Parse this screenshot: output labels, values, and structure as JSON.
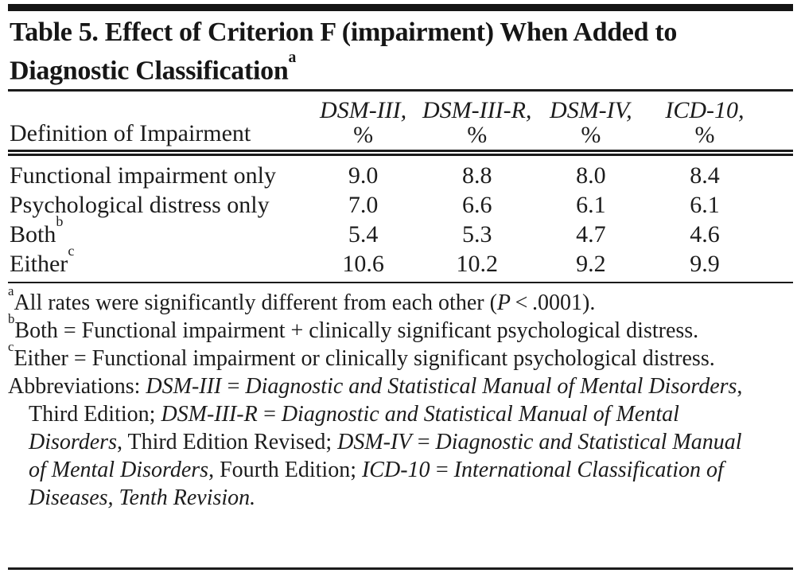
{
  "title": {
    "text": "Table 5. Effect of Criterion F (impairment) When Added to Diagnostic Classification",
    "sup": "a"
  },
  "table": {
    "stub_header": "Definition of Impairment",
    "columns": [
      {
        "name": "DSM-III,",
        "unit": "%"
      },
      {
        "name": "DSM-III-R,",
        "unit": "%"
      },
      {
        "name": "DSM-IV,",
        "unit": "%"
      },
      {
        "name": "ICD-10,",
        "unit": "%"
      }
    ],
    "rows": [
      {
        "label": "Functional impairment only",
        "sup": "",
        "values": [
          "9.0",
          "8.8",
          "8.0",
          "8.4"
        ]
      },
      {
        "label": "Psychological distress only",
        "sup": "",
        "values": [
          "7.0",
          "6.6",
          "6.1",
          "6.1"
        ]
      },
      {
        "label": "Both",
        "sup": "b",
        "values": [
          "5.4",
          "5.3",
          "4.7",
          "4.6"
        ]
      },
      {
        "label": "Either",
        "sup": "c",
        "values": [
          "10.6",
          "10.2",
          "9.2",
          "9.9"
        ]
      }
    ]
  },
  "footnotes": [
    {
      "segments": [
        {
          "sup": "a"
        },
        {
          "t": "All rates were significantly different from each other ("
        },
        {
          "t": "P",
          "i": true
        },
        {
          "t": " < .0001)."
        }
      ]
    },
    {
      "segments": [
        {
          "sup": "b"
        },
        {
          "t": "Both = Functional impairment + clinically significant psychological distress."
        }
      ]
    },
    {
      "segments": [
        {
          "sup": "c"
        },
        {
          "t": "Either = Functional impairment or clinically significant psychological distress."
        }
      ]
    },
    {
      "segments": [
        {
          "t": "Abbreviations: "
        },
        {
          "t": "DSM-III = Diagnostic and Statistical Manual of Mental Disorders",
          "i": true
        },
        {
          "t": ", Third Edition; "
        },
        {
          "t": "DSM-III-R = Diagnostic and Statistical Manual of Mental Disorders",
          "i": true
        },
        {
          "t": ", Third Edition Revised; "
        },
        {
          "t": "DSM-IV = Diagnostic and Statistical Manual of Mental Disorders",
          "i": true
        },
        {
          "t": ", Fourth Edition; "
        },
        {
          "t": "ICD-10 = International Classification of Diseases, Tenth Revision.",
          "i": true
        }
      ]
    }
  ],
  "colors": {
    "background": "#ffffff",
    "text": "#1c1c1c",
    "rule": "#1b1b1b"
  }
}
